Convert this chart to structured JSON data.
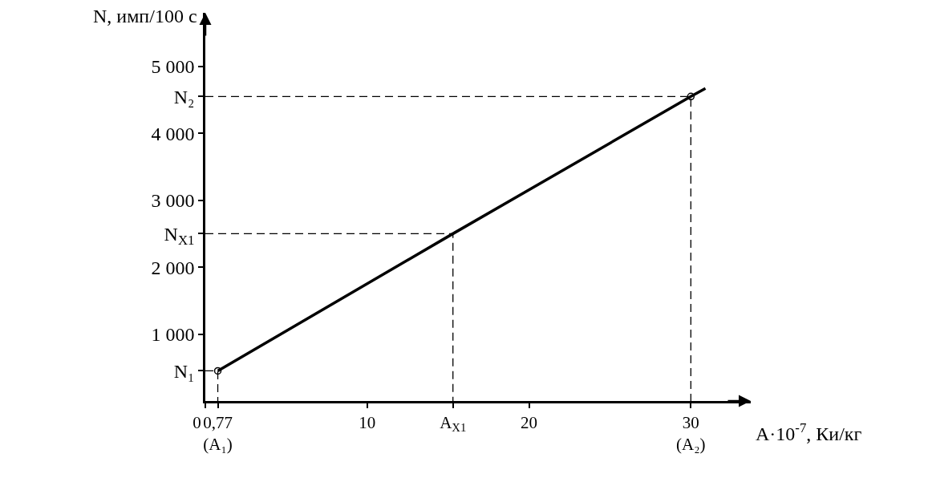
{
  "chart_data": {
    "type": "line",
    "xlabel": "A·10$^{-7}$, Ки/кг",
    "ylabel": "N, имп/100 с",
    "xlim": [
      0,
      33.7
    ],
    "ylim": [
      0,
      5800
    ],
    "xticks": [
      0,
      {
        "value": 0.77,
        "label": "0,77\n(A₁)"
      },
      10,
      {
        "value": 15.3,
        "label": "A$_{X1}$"
      },
      20,
      {
        "value": 30,
        "label": "30\n(A₂)"
      }
    ],
    "yticks": [
      {
        "value": 450,
        "label": "N₁"
      },
      {
        "value": 1000,
        "label": "1 000"
      },
      {
        "value": 2000,
        "label": "2 000"
      },
      {
        "value": 2500,
        "label": "N$_{X1}$"
      },
      {
        "value": 3000,
        "label": "3 000"
      },
      {
        "value": 4000,
        "label": "4 000"
      },
      {
        "value": 4550,
        "label": "N₂"
      },
      {
        "value": 5000,
        "label": "5 000"
      }
    ],
    "series": [
      {
        "color": "#000000",
        "x": [
          0.77,
          15.3,
          30,
          30.9
        ],
        "values": [
          450,
          2500,
          4550,
          4670
        ],
        "line_style": "solid",
        "marker": "none"
      },
      {
        "color": "#000000",
        "x": [
          0,
          0.77,
          0.77
        ],
        "values": [
          450,
          450,
          0
        ],
        "line_style": "dashed",
        "marker": "none"
      },
      {
        "color": "#000000",
        "x": [
          0,
          15.3,
          15.3
        ],
        "values": [
          2500,
          2500,
          0
        ],
        "line_style": "dashed",
        "marker": "none"
      },
      {
        "color": "#000000",
        "x": [
          0,
          30,
          30
        ],
        "values": [
          4550,
          4550,
          0
        ],
        "line_style": "dashed",
        "marker": "none"
      },
      {
        "type": "scatter",
        "color": "#000000",
        "x": [
          0.77,
          30
        ],
        "values": [
          450,
          4550
        ],
        "marker": "circle"
      }
    ]
  }
}
